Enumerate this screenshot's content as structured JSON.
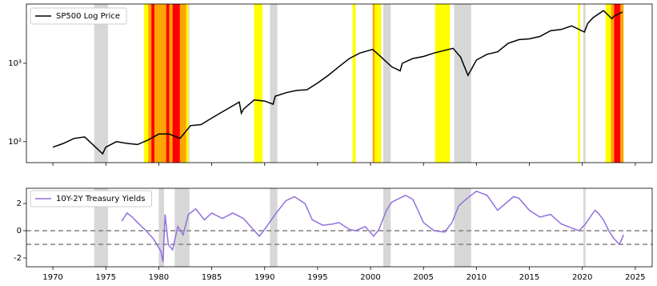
{
  "chart_data": [
    {
      "type": "line",
      "log_y": true,
      "xlim": [
        1967.5,
        2026.6
      ],
      "xticks": [
        1970,
        1975,
        1980,
        1985,
        1990,
        1995,
        2000,
        2005,
        2010,
        2015,
        2020,
        2025
      ],
      "ylim": [
        54,
        5700
      ],
      "yticks": [
        {
          "value": 100,
          "label": "10²"
        },
        {
          "value": 1000,
          "label": "10³"
        }
      ],
      "legend": "upper left",
      "regions": [
        {
          "start": 1973.9,
          "end": 1975.2,
          "color": "#d3d3d3"
        },
        {
          "start": 1980.0,
          "end": 1980.5,
          "color": "#d3d3d3"
        },
        {
          "start": 1981.5,
          "end": 1982.9,
          "color": "#d3d3d3"
        },
        {
          "start": 1990.5,
          "end": 1991.2,
          "color": "#d3d3d3"
        },
        {
          "start": 2001.2,
          "end": 2001.9,
          "color": "#d3d3d3"
        },
        {
          "start": 2007.9,
          "end": 2009.5,
          "color": "#d3d3d3"
        },
        {
          "start": 2020.1,
          "end": 2020.3,
          "color": "#d3d3d3"
        },
        {
          "start": 1978.6,
          "end": 1979.0,
          "color": "#ffff00"
        },
        {
          "start": 1979.0,
          "end": 1979.3,
          "color": "#ffa500"
        },
        {
          "start": 1979.3,
          "end": 1979.6,
          "color": "#ff0000"
        },
        {
          "start": 1979.6,
          "end": 1980.7,
          "color": "#ffa500"
        },
        {
          "start": 1980.7,
          "end": 1981.0,
          "color": "#ff0000"
        },
        {
          "start": 1981.0,
          "end": 1981.3,
          "color": "#ffa500"
        },
        {
          "start": 1981.3,
          "end": 1982.0,
          "color": "#ff0000"
        },
        {
          "start": 1982.0,
          "end": 1982.6,
          "color": "#ffa500"
        },
        {
          "start": 1982.6,
          "end": 1982.8,
          "color": "#ffff00"
        },
        {
          "start": 1989.0,
          "end": 1989.8,
          "color": "#ffff00"
        },
        {
          "start": 1998.3,
          "end": 1998.6,
          "color": "#ffff00"
        },
        {
          "start": 2000.2,
          "end": 2000.4,
          "color": "#ffa500"
        },
        {
          "start": 2000.4,
          "end": 2001.0,
          "color": "#ffff00"
        },
        {
          "start": 2006.1,
          "end": 2007.5,
          "color": "#ffff00"
        },
        {
          "start": 2019.6,
          "end": 2019.8,
          "color": "#ffff00"
        },
        {
          "start": 2022.2,
          "end": 2022.7,
          "color": "#ffff00"
        },
        {
          "start": 2022.7,
          "end": 2023.0,
          "color": "#ffa500"
        },
        {
          "start": 2023.0,
          "end": 2023.6,
          "color": "#ff0000"
        },
        {
          "start": 2023.6,
          "end": 2023.9,
          "color": "#ffa500"
        }
      ],
      "x": [
        1970,
        1971,
        1972,
        1973,
        1974.7,
        1975,
        1976,
        1977,
        1978,
        1979,
        1980,
        1981,
        1982,
        1983,
        1984,
        1985,
        1986,
        1987.6,
        1987.8,
        1988,
        1989,
        1990,
        1990.8,
        1991,
        1992,
        1993,
        1994,
        1995,
        1996,
        1997,
        1998,
        1999,
        2000.2,
        2001,
        2002,
        2002.8,
        2003,
        2004,
        2005,
        2006,
        2007.8,
        2008.5,
        2009.2,
        2010,
        2011,
        2012,
        2013,
        2014,
        2015,
        2016,
        2017,
        2018,
        2019,
        2020.2,
        2020.5,
        2021,
        2022,
        2022.8,
        2023,
        2023.8
      ],
      "series": [
        {
          "name": "SP500 Log Price",
          "color": "#000000",
          "values": [
            85,
            95,
            110,
            115,
            70,
            85,
            100,
            95,
            92,
            105,
            125,
            125,
            110,
            160,
            165,
            200,
            240,
            320,
            230,
            260,
            340,
            330,
            300,
            380,
            420,
            450,
            460,
            560,
            700,
            900,
            1150,
            1350,
            1500,
            1200,
            900,
            800,
            1000,
            1150,
            1220,
            1350,
            1550,
            1200,
            700,
            1100,
            1300,
            1400,
            1800,
            2000,
            2050,
            2200,
            2600,
            2700,
            3000,
            2500,
            3200,
            3800,
            4700,
            3700,
            4000,
            4500
          ]
        }
      ]
    },
    {
      "type": "line",
      "log_y": false,
      "xlim": [
        1967.5,
        2026.6
      ],
      "xticks": [
        1970,
        1975,
        1980,
        1985,
        1990,
        1995,
        2000,
        2005,
        2010,
        2015,
        2020,
        2025
      ],
      "ylim": [
        -2.65,
        3.12
      ],
      "yticks": [
        -2,
        0,
        2
      ],
      "hlines": [
        0,
        -1
      ],
      "legend": "upper left",
      "regions": [
        {
          "start": 1973.9,
          "end": 1975.2,
          "color": "#d3d3d3"
        },
        {
          "start": 1980.0,
          "end": 1980.5,
          "color": "#d3d3d3"
        },
        {
          "start": 1981.5,
          "end": 1982.9,
          "color": "#d3d3d3"
        },
        {
          "start": 1990.5,
          "end": 1991.2,
          "color": "#d3d3d3"
        },
        {
          "start": 2001.2,
          "end": 2001.9,
          "color": "#d3d3d3"
        },
        {
          "start": 2007.9,
          "end": 2009.5,
          "color": "#d3d3d3"
        },
        {
          "start": 2020.1,
          "end": 2020.3,
          "color": "#d3d3d3"
        }
      ],
      "x": [
        1976.5,
        1977,
        1977.5,
        1978,
        1978.8,
        1979.5,
        1980.2,
        1980.4,
        1980.6,
        1980.9,
        1981.3,
        1981.8,
        1982.3,
        1982.8,
        1983.5,
        1984.3,
        1985,
        1986,
        1987,
        1988,
        1988.8,
        1989.5,
        1990,
        1991,
        1992,
        1992.8,
        1993.8,
        1994.5,
        1995.5,
        1996.5,
        1997,
        1998,
        1998.6,
        1999.5,
        2000.3,
        2000.8,
        2001.5,
        2002,
        2003.3,
        2004,
        2005,
        2006,
        2007,
        2007.7,
        2008.3,
        2009,
        2010,
        2011,
        2012,
        2013.5,
        2014,
        2015,
        2016,
        2017,
        2018,
        2019,
        2019.7,
        2020.3,
        2021.2,
        2021.5,
        2022,
        2022.5,
        2023,
        2023.5,
        2023.9
      ],
      "series": [
        {
          "name": "10Y-2Y Treasury Yields",
          "color": "#9370db",
          "values": [
            0.7,
            1.3,
            1.0,
            0.6,
            0,
            -0.6,
            -1.5,
            -2.3,
            1.2,
            -1.0,
            -1.4,
            0.3,
            -0.3,
            1.2,
            1.6,
            0.8,
            1.3,
            0.9,
            1.3,
            0.9,
            0.2,
            -0.4,
            0.1,
            1.2,
            2.2,
            2.5,
            2.0,
            0.8,
            0.4,
            0.5,
            0.6,
            0.1,
            0,
            0.3,
            -0.4,
            0.1,
            1.5,
            2.1,
            2.6,
            2.3,
            0.6,
            0,
            -0.1,
            0.6,
            1.8,
            2.3,
            2.9,
            2.6,
            1.5,
            2.5,
            2.4,
            1.5,
            1.0,
            1.2,
            0.5,
            0.2,
            0,
            0.5,
            1.5,
            1.3,
            0.8,
            0,
            -0.6,
            -1.0,
            -0.3
          ]
        }
      ]
    }
  ]
}
